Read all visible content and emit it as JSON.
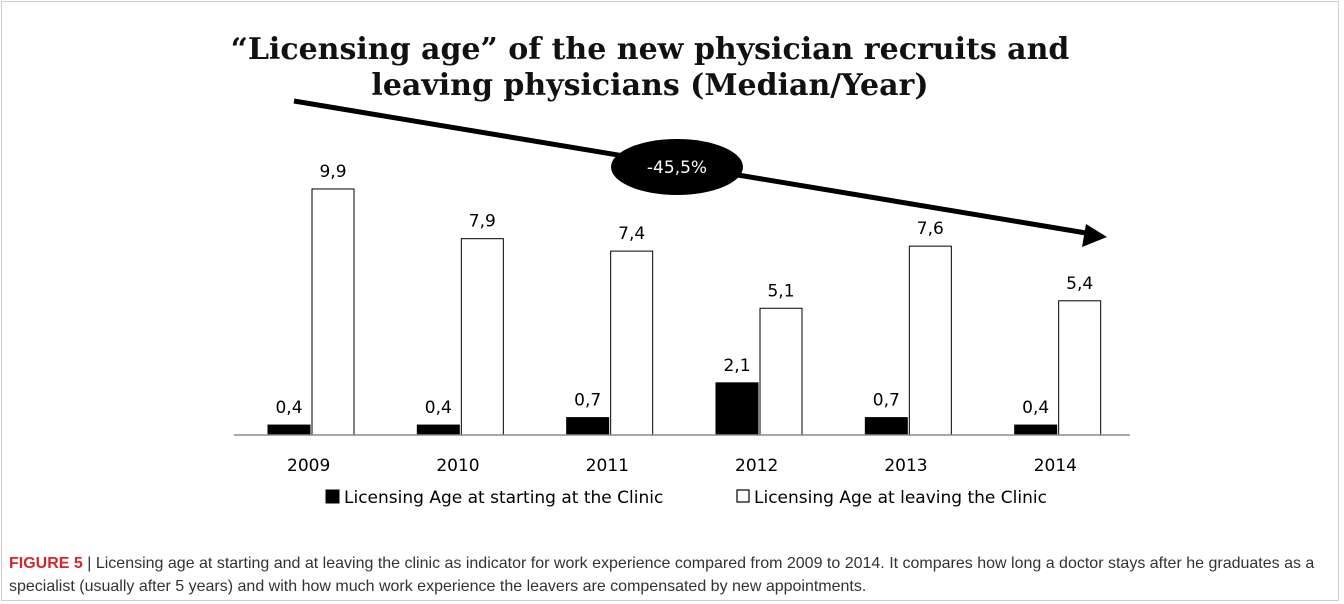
{
  "chart_data": {
    "type": "bar",
    "title_line1": "“Licensing age” of the new physician recruits and",
    "title_line2": "leaving physicians (Median/Year)",
    "categories": [
      "2009",
      "2010",
      "2011",
      "2012",
      "2013",
      "2014"
    ],
    "series": [
      {
        "name": "Licensing Age at starting at the Clinic",
        "values": [
          0.4,
          0.4,
          0.7,
          2.1,
          0.7,
          0.4
        ],
        "labels": [
          "0,4",
          "0,4",
          "0,7",
          "2,1",
          "0,7",
          "0,4"
        ],
        "color": "#000000"
      },
      {
        "name": "Licensing Age at leaving the Clinic",
        "values": [
          9.9,
          7.9,
          7.4,
          5.1,
          7.6,
          5.4
        ],
        "labels": [
          "9,9",
          "7,9",
          "7,4",
          "5,1",
          "7,6",
          "5,4"
        ],
        "color": "#ffffff"
      }
    ],
    "trend_annotation": "-45,5%",
    "ylim": [
      0,
      11
    ],
    "grid": false,
    "legend_position": "bottom"
  },
  "caption": {
    "label": "FIGURE 5",
    "text": " | Licensing age at starting and at leaving the clinic as indicator for work experience compared from 2009 to 2014. It compares how long a doctor stays after he graduates as a specialist (usually after 5 years) and with how much work experience the leavers are compensated by new appointments."
  }
}
